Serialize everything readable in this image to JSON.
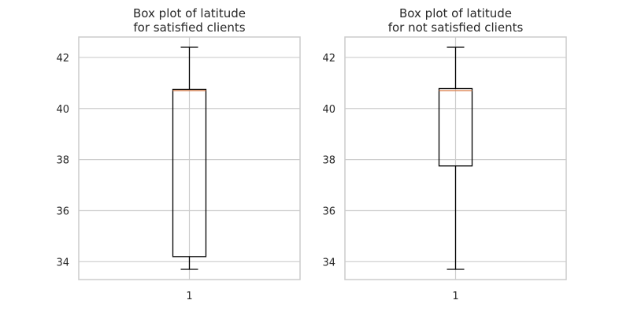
{
  "chart_data": [
    {
      "type": "box",
      "title": "Box plot of latitude\nfor satisfied clients",
      "categories": [
        "1"
      ],
      "ylim": [
        33.3,
        42.8
      ],
      "yticks": [
        34,
        36,
        38,
        40,
        42
      ],
      "grid": true,
      "box": {
        "whislo": 33.7,
        "q1": 34.2,
        "median": 40.7,
        "q3": 40.75,
        "whishi": 42.4
      },
      "colors": {
        "median": "#dd8452",
        "box": "#000000",
        "grid": "#cccccc",
        "spine": "#cccccc"
      }
    },
    {
      "type": "box",
      "title": "Box plot of latitude\nfor not satisfied clients",
      "categories": [
        "1"
      ],
      "ylim": [
        33.3,
        42.8
      ],
      "yticks": [
        34,
        36,
        38,
        40,
        42
      ],
      "grid": true,
      "box": {
        "whislo": 33.7,
        "q1": 37.75,
        "median": 40.7,
        "q3": 40.78,
        "whishi": 42.4
      },
      "colors": {
        "median": "#dd8452",
        "box": "#000000",
        "grid": "#cccccc",
        "spine": "#cccccc"
      }
    }
  ]
}
